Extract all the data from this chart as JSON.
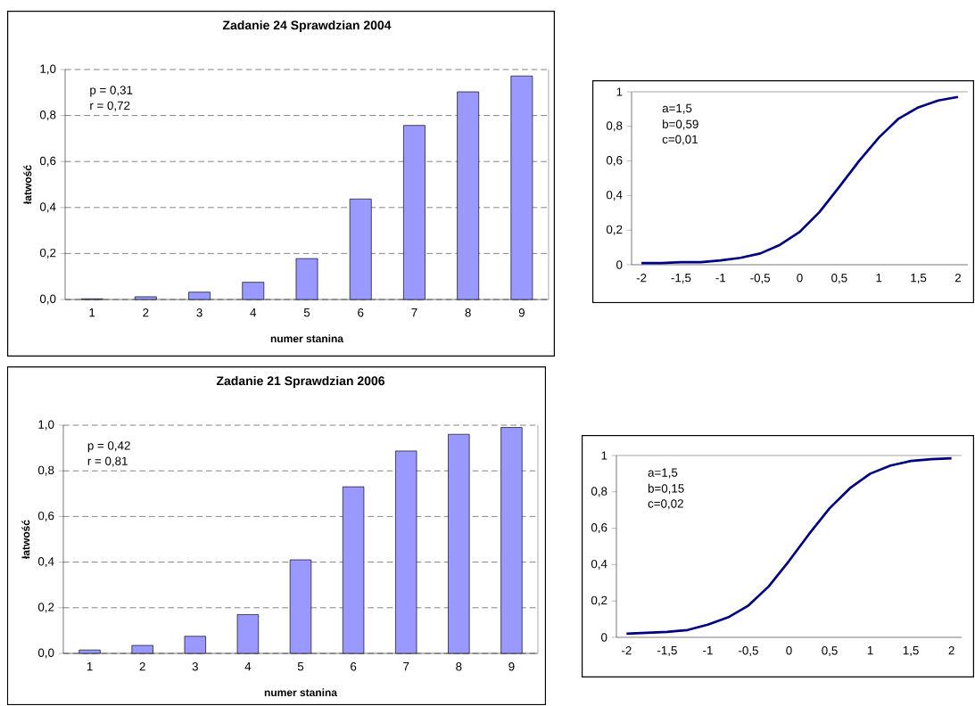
{
  "chart_data": [
    {
      "type": "bar",
      "title": "Zadanie 24  Sprawdzian 2004",
      "xlabel": "numer stanina",
      "ylabel": "łatwość",
      "categories": [
        "1",
        "2",
        "3",
        "4",
        "5",
        "6",
        "7",
        "8",
        "9"
      ],
      "values": [
        0.003,
        0.012,
        0.032,
        0.075,
        0.178,
        0.437,
        0.757,
        0.903,
        0.972
      ],
      "color": "#9999ff",
      "ylim": [
        0,
        1
      ],
      "yticks": [
        {
          "value": 0,
          "label": "0,0"
        },
        {
          "value": 0.2,
          "label": "0,2"
        },
        {
          "value": 0.4,
          "label": "0,4"
        },
        {
          "value": 0.6,
          "label": "0,6"
        },
        {
          "value": 0.8,
          "label": "0,8"
        },
        {
          "value": 1,
          "label": "1,0"
        }
      ],
      "grid": "y",
      "annotations": [
        "p = 0,31",
        "r = 0,72"
      ]
    },
    {
      "type": "line",
      "categories": [
        "-2",
        null,
        "-1,5",
        null,
        "-1",
        null,
        "-0,5",
        null,
        "0",
        null,
        "0,5",
        null,
        "1",
        null,
        "1,5",
        null,
        "2"
      ],
      "values": [
        0.01,
        0.01,
        0.015,
        0.015,
        0.025,
        0.04,
        0.065,
        0.115,
        0.19,
        0.305,
        0.45,
        0.6,
        0.735,
        0.845,
        0.91,
        0.95,
        0.97
      ],
      "color": "#000080",
      "ylim": [
        0,
        1
      ],
      "yticks": [
        0,
        {
          "value": 0.2,
          "label": "0,2"
        },
        {
          "value": 0.4,
          "label": "0,4"
        },
        {
          "value": 0.6,
          "label": "0,6"
        },
        {
          "value": 0.8,
          "label": "0,8"
        },
        1
      ],
      "annotations": [
        "a=1,5",
        "b=0,59",
        "c=0,01"
      ]
    },
    {
      "type": "bar",
      "title": "Zadanie 21   Sprawdzian 2006",
      "xlabel": "numer stanina",
      "ylabel": "łatwość",
      "categories": [
        "1",
        "2",
        "3",
        "4",
        "5",
        "6",
        "7",
        "8",
        "9"
      ],
      "values": [
        0.015,
        0.035,
        0.075,
        0.17,
        0.41,
        0.73,
        0.887,
        0.96,
        0.99
      ],
      "color": "#9999ff",
      "ylim": [
        0,
        1
      ],
      "yticks": [
        {
          "value": 0,
          "label": "0,0"
        },
        {
          "value": 0.2,
          "label": "0,2"
        },
        {
          "value": 0.4,
          "label": "0,4"
        },
        {
          "value": 0.6,
          "label": "0,6"
        },
        {
          "value": 0.8,
          "label": "0,8"
        },
        {
          "value": 1,
          "label": "1,0"
        }
      ],
      "grid": "y",
      "annotations": [
        "p = 0,42",
        "r =  0,81"
      ]
    },
    {
      "type": "line",
      "categories": [
        "-2",
        null,
        "-1,5",
        null,
        "-1",
        null,
        "-0,5",
        null,
        "0",
        null,
        "0,5",
        null,
        "1",
        null,
        "1,5",
        null,
        "2"
      ],
      "values": [
        0.02,
        0.025,
        0.03,
        0.04,
        0.07,
        0.11,
        0.175,
        0.28,
        0.42,
        0.57,
        0.71,
        0.82,
        0.9,
        0.945,
        0.97,
        0.98,
        0.985
      ],
      "color": "#000080",
      "ylim": [
        0,
        1
      ],
      "yticks": [
        0,
        {
          "value": 0.2,
          "label": "0,2"
        },
        {
          "value": 0.4,
          "label": "0,4"
        },
        {
          "value": 0.6,
          "label": "0,6"
        },
        {
          "value": 0.8,
          "label": "0,8"
        },
        1
      ],
      "annotations": [
        "a=1,5",
        "b=0,15",
        "c=0,02"
      ]
    }
  ]
}
